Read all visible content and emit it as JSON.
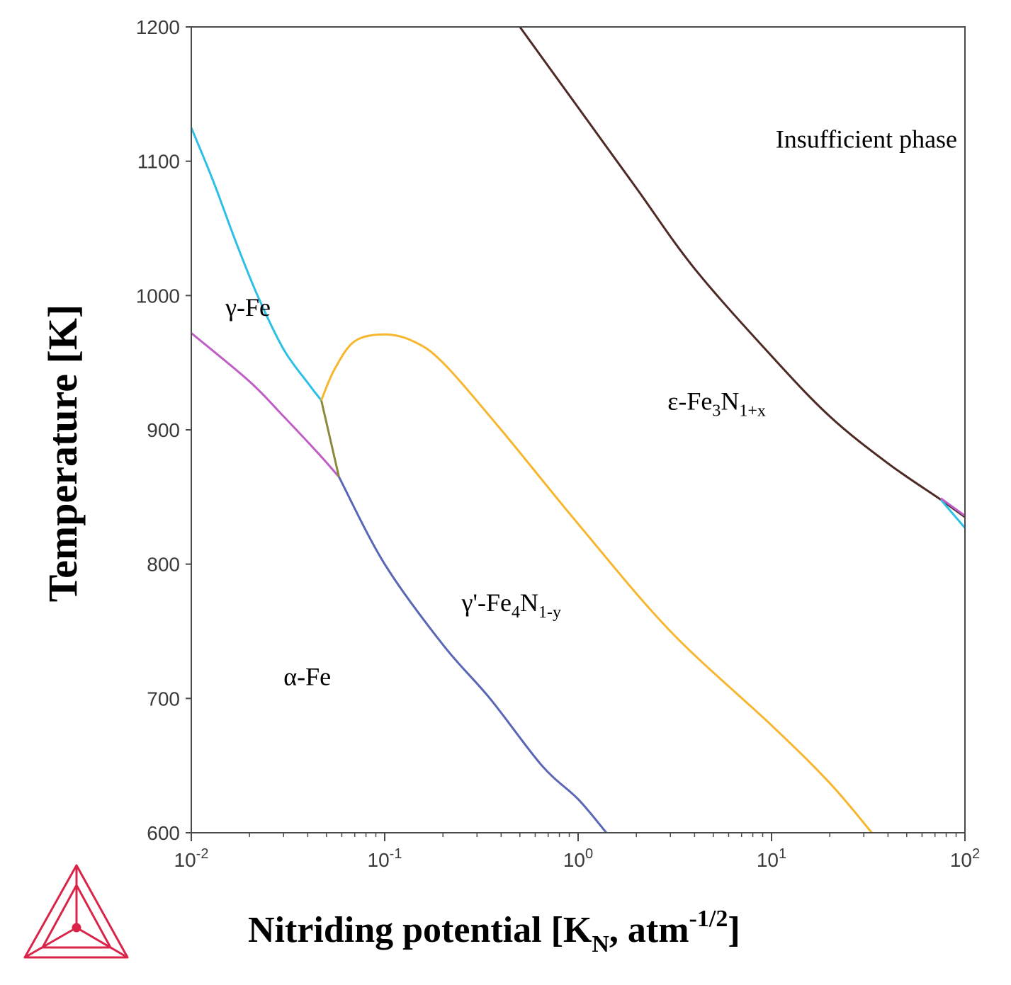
{
  "chart_data": {
    "type": "line",
    "title": "",
    "xlabel": {
      "main": "Nitriding  potential  [K",
      "sub": "N",
      "tail": ", atm",
      "sup": "-1/2",
      "close": "]"
    },
    "ylabel": "Temperature [K]",
    "xscale": "log",
    "xlim": [
      0.01,
      100
    ],
    "ylim": [
      600,
      1200
    ],
    "grid": false,
    "x_ticks": [
      {
        "value": 0.01,
        "base": "10",
        "exp": "-2"
      },
      {
        "value": 0.1,
        "base": "10",
        "exp": "-1"
      },
      {
        "value": 1,
        "base": "10",
        "exp": "0"
      },
      {
        "value": 10,
        "base": "10",
        "exp": "1"
      },
      {
        "value": 100,
        "base": "10",
        "exp": "2"
      }
    ],
    "y_ticks": [
      "600",
      "700",
      "800",
      "900",
      "1000",
      "1100",
      "1200"
    ],
    "series": [
      {
        "color": "#2cc0e6",
        "points": [
          [
            0.01,
            1125
          ],
          [
            0.013,
            1085
          ],
          [
            0.017,
            1040
          ],
          [
            0.022,
            1000
          ],
          [
            0.03,
            960
          ],
          [
            0.04,
            935
          ],
          [
            0.047,
            922
          ]
        ]
      },
      {
        "color": "#bf5fc6",
        "points": [
          [
            0.01,
            972
          ],
          [
            0.02,
            936
          ],
          [
            0.03,
            910
          ],
          [
            0.045,
            883
          ],
          [
            0.058,
            865
          ]
        ]
      },
      {
        "color": "#8a8a3a",
        "points": [
          [
            0.047,
            922
          ],
          [
            0.058,
            865
          ]
        ]
      },
      {
        "color": "#5a66b6",
        "points": [
          [
            0.058,
            865
          ],
          [
            0.1,
            800
          ],
          [
            0.2,
            740
          ],
          [
            0.35,
            700
          ],
          [
            0.65,
            650
          ],
          [
            1.0,
            625
          ],
          [
            1.4,
            600
          ]
        ]
      },
      {
        "color": "#f8b62e",
        "points": [
          [
            0.047,
            922
          ],
          [
            0.055,
            945
          ],
          [
            0.07,
            966
          ],
          [
            0.1,
            971
          ],
          [
            0.14,
            966
          ],
          [
            0.2,
            950
          ],
          [
            0.4,
            900
          ],
          [
            1.0,
            830
          ],
          [
            3.0,
            750
          ],
          [
            10.0,
            680
          ],
          [
            20.0,
            637
          ],
          [
            33.0,
            600
          ]
        ]
      },
      {
        "color": "#4e2a24",
        "points": [
          [
            0.5,
            1200
          ],
          [
            1.0,
            1140
          ],
          [
            2.0,
            1080
          ],
          [
            4.0,
            1020
          ],
          [
            10.0,
            955
          ],
          [
            20.0,
            910
          ],
          [
            40.0,
            875
          ],
          [
            75.0,
            848
          ],
          [
            100.0,
            835
          ]
        ]
      },
      {
        "color": "#2cc0e6",
        "points": [
          [
            75.0,
            848
          ],
          [
            100.0,
            827
          ]
        ]
      },
      {
        "color": "#bf5fc6",
        "points": [
          [
            75.0,
            849
          ],
          [
            100.0,
            836
          ]
        ]
      }
    ],
    "annotations": [
      {
        "text": "γ-Fe",
        "x": 0.015,
        "y": 985
      },
      {
        "text": "α-Fe",
        "x": 0.03,
        "y": 710
      },
      {
        "text": "γ'-Fe",
        "sub1": "4",
        "mid": "N",
        "sub2": "1-y",
        "x": 0.25,
        "y": 765
      },
      {
        "text": "ε-Fe",
        "sub1": "3",
        "mid": "N",
        "sub2": "1+x",
        "x": 2.9,
        "y": 915
      },
      {
        "text": "Insufficient phase",
        "x": 10.5,
        "y": 1110
      }
    ],
    "logo_color": "#d9254a"
  }
}
